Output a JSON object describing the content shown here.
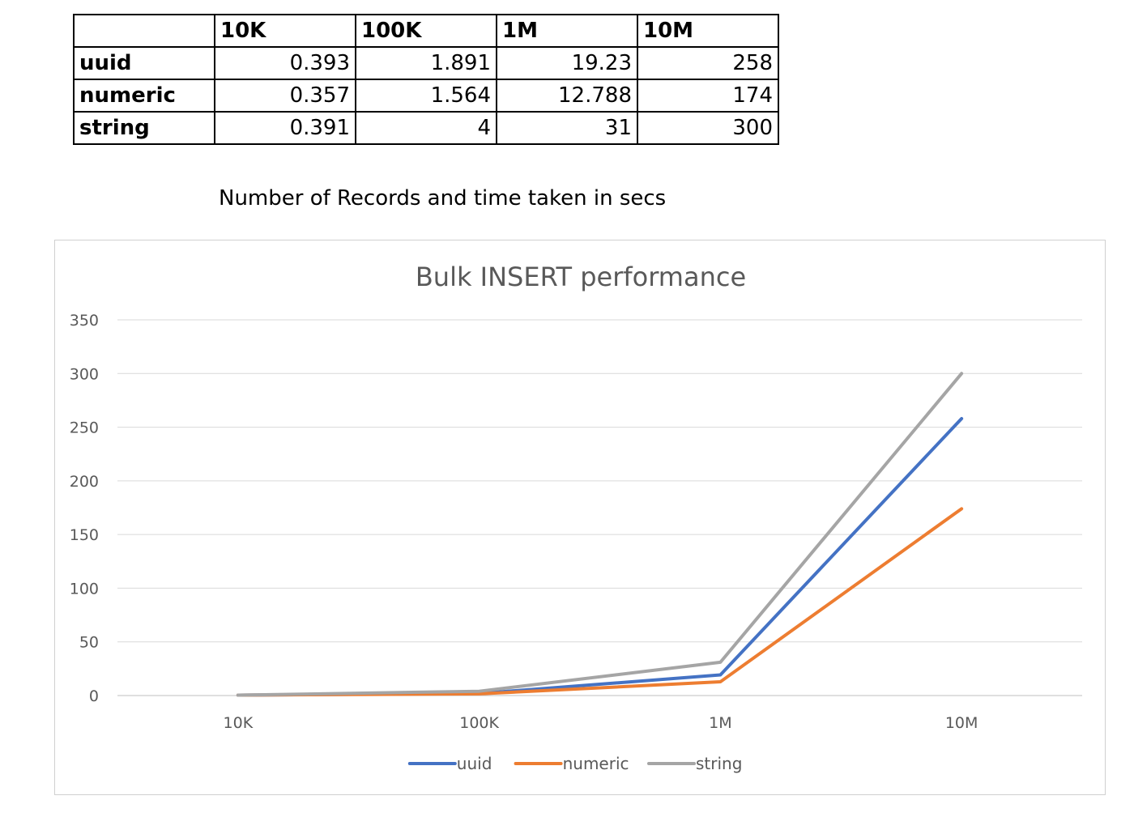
{
  "table": {
    "columns": [
      "10K",
      "100K",
      "1M",
      "10M"
    ],
    "rows": [
      {
        "label": "uuid",
        "values": [
          "0.393",
          "1.891",
          "19.23",
          "258"
        ]
      },
      {
        "label": "numeric",
        "values": [
          "0.357",
          "1.564",
          "12.788",
          "174"
        ]
      },
      {
        "label": "string",
        "values": [
          "0.391",
          "4",
          "31",
          "300"
        ]
      }
    ]
  },
  "caption": "Number of Records and time taken in secs",
  "chart_data": {
    "type": "line",
    "title": "Bulk INSERT performance",
    "categories": [
      "10K",
      "100K",
      "1M",
      "10M"
    ],
    "series": [
      {
        "name": "uuid",
        "color": "#4472C4",
        "values": [
          0.393,
          1.891,
          19.23,
          258
        ]
      },
      {
        "name": "numeric",
        "color": "#ED7D31",
        "values": [
          0.357,
          1.564,
          12.788,
          174
        ]
      },
      {
        "name": "string",
        "color": "#A5A5A5",
        "values": [
          0.391,
          4,
          31,
          300
        ]
      }
    ],
    "ylim": [
      0,
      350
    ],
    "yticks": [
      0,
      50,
      100,
      150,
      200,
      250,
      300,
      350
    ],
    "grid": true,
    "legend_position": "bottom"
  }
}
